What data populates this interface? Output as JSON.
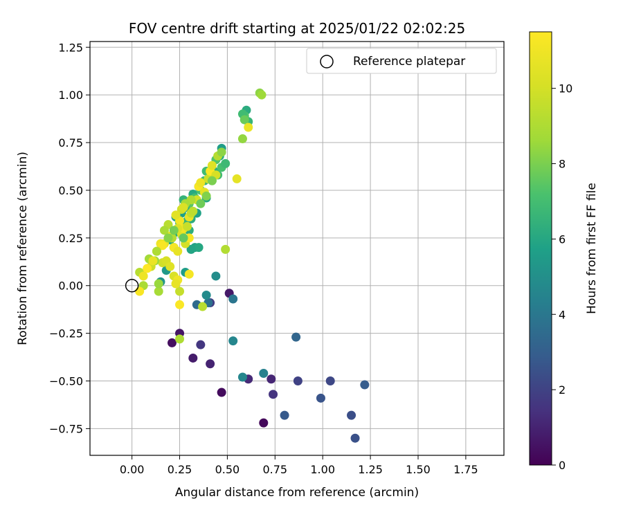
{
  "chart_data": {
    "type": "scatter",
    "title": "FOV centre drift starting at 2025/01/22 02:02:25",
    "xlabel": "Angular distance from reference (arcmin)",
    "ylabel": "Rotation from reference (arcmin)",
    "xlim": [
      -0.22,
      1.95
    ],
    "ylim": [
      -0.89,
      1.28
    ],
    "x_ticks": [
      0.0,
      0.25,
      0.5,
      0.75,
      1.0,
      1.25,
      1.5,
      1.75
    ],
    "x_tick_labels": [
      "0.00",
      "0.25",
      "0.50",
      "0.75",
      "1.00",
      "1.25",
      "1.50",
      "1.75"
    ],
    "y_ticks": [
      -0.75,
      -0.5,
      -0.25,
      0.0,
      0.25,
      0.5,
      0.75,
      1.0,
      1.25
    ],
    "y_tick_labels": [
      "−0.75",
      "−0.50",
      "−0.25",
      "0.00",
      "0.25",
      "0.50",
      "0.75",
      "1.00",
      "1.25"
    ],
    "grid": true,
    "legend": {
      "placement": "top-right",
      "entries": [
        "Reference platepar"
      ]
    },
    "reference_point": {
      "x": 0.0,
      "y": 0.0,
      "label": "Reference platepar"
    },
    "colorbar": {
      "label": "Hours from first FF file",
      "colormap": "viridis",
      "range": [
        0,
        11.5
      ],
      "ticks": [
        0,
        2,
        4,
        6,
        8,
        10
      ],
      "tick_labels": [
        "0",
        "2",
        "4",
        "6",
        "8",
        "10"
      ]
    },
    "points": [
      [
        0.69,
        -0.72,
        0.2
      ],
      [
        0.21,
        -0.3,
        0.4
      ],
      [
        0.25,
        -0.25,
        0.6
      ],
      [
        0.32,
        -0.38,
        0.8
      ],
      [
        0.41,
        -0.41,
        1.0
      ],
      [
        0.47,
        -0.56,
        0.3
      ],
      [
        0.51,
        -0.04,
        0.7
      ],
      [
        0.61,
        -0.49,
        1.2
      ],
      [
        0.73,
        -0.49,
        1.1
      ],
      [
        0.74,
        -0.57,
        1.5
      ],
      [
        0.36,
        -0.31,
        1.6
      ],
      [
        0.41,
        -0.09,
        1.8
      ],
      [
        0.87,
        -0.5,
        2.0
      ],
      [
        1.04,
        -0.5,
        2.2
      ],
      [
        0.99,
        -0.59,
        2.6
      ],
      [
        1.15,
        -0.68,
        2.4
      ],
      [
        1.17,
        -0.8,
        2.5
      ],
      [
        1.22,
        -0.52,
        2.9
      ],
      [
        0.8,
        -0.68,
        2.8
      ],
      [
        0.86,
        -0.27,
        3.3
      ],
      [
        0.34,
        -0.1,
        3.5
      ],
      [
        0.4,
        -0.09,
        3.7
      ],
      [
        0.53,
        -0.07,
        3.9
      ],
      [
        0.69,
        -0.46,
        4.4
      ],
      [
        0.58,
        -0.48,
        4.6
      ],
      [
        0.53,
        -0.29,
        4.6
      ],
      [
        0.39,
        -0.05,
        4.8
      ],
      [
        0.44,
        0.05,
        4.9
      ],
      [
        0.15,
        0.02,
        5.2
      ],
      [
        0.18,
        0.08,
        5.4
      ],
      [
        0.28,
        0.07,
        5.6
      ],
      [
        0.33,
        0.2,
        5.8
      ],
      [
        0.35,
        0.2,
        6.0
      ],
      [
        0.31,
        0.19,
        5.9
      ],
      [
        0.22,
        0.2,
        5.7
      ],
      [
        0.2,
        0.24,
        6.2
      ],
      [
        0.23,
        0.28,
        6.1
      ],
      [
        0.26,
        0.27,
        5.9
      ],
      [
        0.3,
        0.29,
        6.3
      ],
      [
        0.23,
        0.36,
        5.5
      ],
      [
        0.26,
        0.38,
        5.7
      ],
      [
        0.29,
        0.41,
        6.0
      ],
      [
        0.34,
        0.38,
        5.8
      ],
      [
        0.25,
        0.33,
        6.4
      ],
      [
        0.29,
        0.34,
        6.6
      ],
      [
        0.31,
        0.35,
        6.2
      ],
      [
        0.27,
        0.45,
        6.5
      ],
      [
        0.32,
        0.48,
        6.1
      ],
      [
        0.35,
        0.52,
        6.3
      ],
      [
        0.38,
        0.55,
        6.7
      ],
      [
        0.39,
        0.46,
        6.0
      ],
      [
        0.41,
        0.58,
        6.6
      ],
      [
        0.43,
        0.6,
        6.4
      ],
      [
        0.45,
        0.58,
        6.9
      ],
      [
        0.47,
        0.62,
        7.1
      ],
      [
        0.49,
        0.64,
        6.8
      ],
      [
        0.46,
        0.68,
        6.2
      ],
      [
        0.47,
        0.72,
        5.6
      ],
      [
        0.39,
        0.6,
        6.9
      ],
      [
        0.36,
        0.5,
        7.2
      ],
      [
        0.42,
        0.55,
        7.4
      ],
      [
        0.44,
        0.66,
        7.3
      ],
      [
        0.33,
        0.46,
        7.0
      ],
      [
        0.3,
        0.43,
        7.5
      ],
      [
        0.28,
        0.42,
        6.8
      ],
      [
        0.6,
        0.92,
        6.2
      ],
      [
        0.59,
        0.89,
        7.3
      ],
      [
        0.58,
        0.9,
        6.9
      ],
      [
        0.61,
        0.86,
        6.6
      ],
      [
        0.59,
        0.87,
        7.7
      ],
      [
        0.58,
        0.77,
        8.4
      ],
      [
        0.67,
        1.01,
        8.3
      ],
      [
        0.68,
        1.0,
        8.6
      ],
      [
        0.61,
        0.83,
        10.8
      ],
      [
        0.55,
        0.56,
        10.6
      ],
      [
        0.49,
        0.19,
        9.1
      ],
      [
        0.37,
        -0.11,
        9.3
      ],
      [
        0.25,
        -0.28,
        9.0
      ],
      [
        0.25,
        -0.03,
        9.6
      ],
      [
        0.04,
        0.07,
        9.2
      ],
      [
        0.06,
        0.0,
        8.9
      ],
      [
        0.09,
        0.14,
        8.7
      ],
      [
        0.14,
        -0.03,
        8.8
      ],
      [
        0.14,
        0.01,
        8.5
      ],
      [
        0.1,
        0.1,
        9.8
      ],
      [
        0.13,
        0.18,
        9.5
      ],
      [
        0.16,
        0.12,
        9.9
      ],
      [
        0.18,
        0.13,
        10.1
      ],
      [
        0.2,
        0.1,
        10.4
      ],
      [
        0.22,
        0.05,
        10.2
      ],
      [
        0.17,
        0.22,
        10.6
      ],
      [
        0.2,
        0.26,
        10.9
      ],
      [
        0.22,
        0.2,
        11.2
      ],
      [
        0.24,
        0.18,
        10.7
      ],
      [
        0.26,
        0.27,
        10.3
      ],
      [
        0.27,
        0.3,
        11.0
      ],
      [
        0.28,
        0.22,
        10.0
      ],
      [
        0.3,
        0.25,
        11.3
      ],
      [
        0.3,
        0.36,
        10.8
      ],
      [
        0.29,
        0.31,
        9.7
      ],
      [
        0.26,
        0.4,
        9.9
      ],
      [
        0.25,
        0.34,
        11.1
      ],
      [
        0.23,
        0.37,
        10.5
      ],
      [
        0.31,
        0.38,
        9.6
      ],
      [
        0.32,
        0.39,
        9.4
      ],
      [
        0.34,
        0.45,
        10.0
      ],
      [
        0.35,
        0.52,
        11.3
      ],
      [
        0.36,
        0.54,
        10.9
      ],
      [
        0.38,
        0.49,
        10.6
      ],
      [
        0.4,
        0.56,
        9.8
      ],
      [
        0.41,
        0.6,
        11.4
      ],
      [
        0.42,
        0.63,
        10.4
      ],
      [
        0.44,
        0.58,
        10.1
      ],
      [
        0.45,
        0.68,
        9.2
      ],
      [
        0.31,
        0.45,
        9.0
      ],
      [
        0.28,
        0.43,
        8.8
      ],
      [
        0.27,
        0.41,
        10.2
      ],
      [
        0.24,
        0.3,
        10.3
      ],
      [
        0.21,
        0.25,
        9.1
      ],
      [
        0.19,
        0.32,
        9.3
      ],
      [
        0.17,
        0.29,
        8.9
      ],
      [
        0.15,
        0.22,
        11.0
      ],
      [
        0.16,
        0.21,
        11.3
      ],
      [
        0.13,
        0.18,
        9.0
      ],
      [
        0.12,
        0.13,
        8.6
      ],
      [
        0.11,
        0.13,
        10.8
      ],
      [
        0.08,
        0.09,
        11.5
      ],
      [
        0.06,
        0.05,
        10.9
      ],
      [
        0.04,
        -0.03,
        11.3
      ],
      [
        0.24,
        0.03,
        11.0
      ],
      [
        0.23,
        0.01,
        10.7
      ],
      [
        0.25,
        -0.1,
        11.4
      ],
      [
        0.3,
        0.06,
        11.2
      ],
      [
        0.36,
        0.43,
        7.8
      ],
      [
        0.39,
        0.47,
        8.1
      ],
      [
        0.42,
        0.55,
        8.0
      ],
      [
        0.47,
        0.7,
        8.3
      ],
      [
        0.27,
        0.25,
        7.6
      ],
      [
        0.22,
        0.29,
        7.9
      ],
      [
        0.19,
        0.25,
        8.2
      ]
    ]
  }
}
